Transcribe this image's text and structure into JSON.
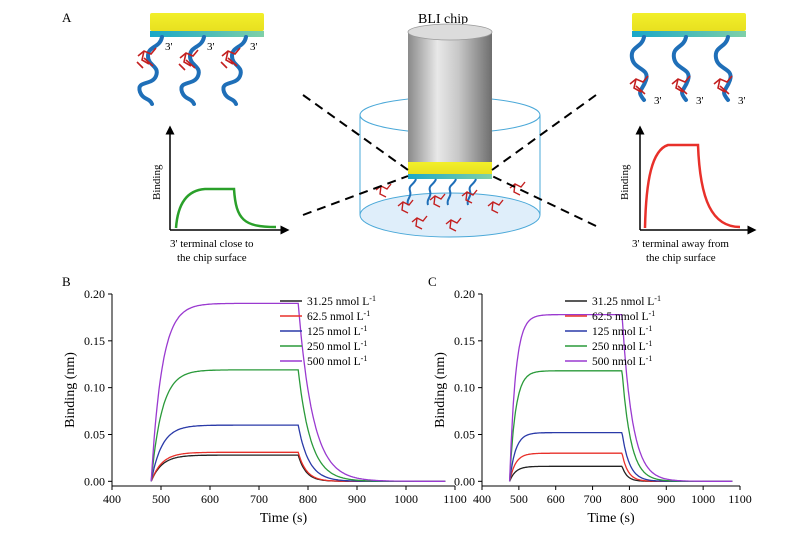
{
  "panel_a": {
    "letter": "A",
    "chip_label": "BLI chip",
    "left_terminal_labels": [
      "3'",
      "3'",
      "3'"
    ],
    "right_terminal_labels": [
      "3'",
      "3'",
      "3'"
    ],
    "left_inset": {
      "ylabel": "Binding",
      "caption_line1": "3' terminal close to",
      "caption_line2": "the chip surface",
      "curve_color": "#2aa02a"
    },
    "right_inset": {
      "ylabel": "Binding",
      "caption_line1": "3' terminal away from",
      "caption_line2": "the chip surface",
      "curve_color": "#e8302a"
    }
  },
  "chart_data": [
    {
      "panel": "B",
      "type": "line",
      "xlabel": "Time (s)",
      "ylabel": "Binding (nm)",
      "xlim": [
        400,
        1100
      ],
      "ylim": [
        -0.005,
        0.2
      ],
      "xticks": [
        400,
        500,
        600,
        700,
        800,
        900,
        1000,
        1100
      ],
      "yticks": [
        0.0,
        0.05,
        0.1,
        0.15,
        0.2
      ],
      "ytick_labels": [
        "0.00",
        "0.05",
        "0.10",
        "0.15",
        "0.20"
      ],
      "legend_position": "top-right",
      "legend_unit": "nmol L",
      "legend_exp": "-1",
      "association_start": 480,
      "dissociation_start": 780,
      "end": 1080,
      "series": [
        {
          "name": "31.25",
          "color": "#222222",
          "plateau": 0.028,
          "assoc_tau": 22,
          "dissoc_tau": 16,
          "end_value": 0.0
        },
        {
          "name": "62.5",
          "color": "#e8302a",
          "plateau": 0.031,
          "assoc_tau": 22,
          "dissoc_tau": 17,
          "end_value": 0.0
        },
        {
          "name": "125",
          "color": "#2a3aa8",
          "plateau": 0.06,
          "assoc_tau": 22,
          "dissoc_tau": 22,
          "end_value": 0.0
        },
        {
          "name": "250",
          "color": "#2a9a3a",
          "plateau": 0.119,
          "assoc_tau": 22,
          "dissoc_tau": 26,
          "end_value": 0.0
        },
        {
          "name": "500",
          "color": "#9a3ad0",
          "plateau": 0.19,
          "assoc_tau": 22,
          "dissoc_tau": 30,
          "end_value": 0.0
        }
      ]
    },
    {
      "panel": "C",
      "type": "line",
      "xlabel": "Time (s)",
      "ylabel": "Binding (nm)",
      "xlim": [
        400,
        1100
      ],
      "ylim": [
        -0.005,
        0.2
      ],
      "xticks": [
        400,
        500,
        600,
        700,
        800,
        900,
        1000,
        1100
      ],
      "yticks": [
        0.0,
        0.05,
        0.1,
        0.15,
        0.2
      ],
      "ytick_labels": [
        "0.00",
        "0.05",
        "0.10",
        "0.15",
        "0.20"
      ],
      "legend_position": "top-right",
      "legend_unit": "nmol L",
      "legend_exp": "-1",
      "association_start": 475,
      "dissociation_start": 780,
      "end": 1080,
      "series": [
        {
          "name": "31.25",
          "color": "#222222",
          "plateau": 0.016,
          "assoc_tau": 16,
          "dissoc_tau": 14,
          "end_value": 0.0
        },
        {
          "name": "62.5",
          "color": "#e8302a",
          "plateau": 0.03,
          "assoc_tau": 16,
          "dissoc_tau": 16,
          "end_value": 0.0
        },
        {
          "name": "125",
          "color": "#2a3aa8",
          "plateau": 0.052,
          "assoc_tau": 16,
          "dissoc_tau": 20,
          "end_value": 0.0
        },
        {
          "name": "250",
          "color": "#2a9a3a",
          "plateau": 0.118,
          "assoc_tau": 16,
          "dissoc_tau": 24,
          "end_value": 0.0
        },
        {
          "name": "500",
          "color": "#9a3ad0",
          "plateau": 0.178,
          "assoc_tau": 16,
          "dissoc_tau": 28,
          "end_value": 0.0
        }
      ]
    }
  ]
}
